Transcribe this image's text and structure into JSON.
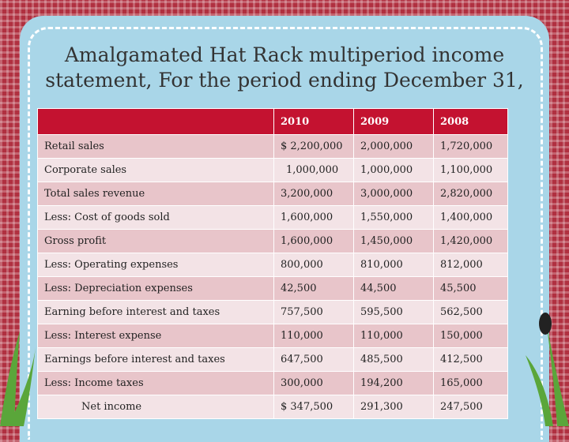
{
  "header": {
    "title": "Amalgamated Hat Rack multiperiod income statement, For the period ending December 31,"
  },
  "table": {
    "columns": [
      "2010",
      "2009",
      "2008"
    ],
    "rows": [
      [
        "Retail sales",
        "$ 2,200,000",
        "2,000,000",
        "1,720,000"
      ],
      [
        "Corporate sales",
        "1,000,000",
        "1,000,000",
        "1,100,000"
      ],
      [
        "Total sales revenue",
        "3,200,000",
        "3,000,000",
        "2,820,000"
      ],
      [
        "Less: Cost of goods sold",
        "1,600,000",
        "1,550,000",
        "1,400,000"
      ],
      [
        "Gross profit",
        "1,600,000",
        "1,450,000",
        "1,420,000"
      ],
      [
        "Less: Operating expenses",
        "800,000",
        "810,000",
        "812,000"
      ],
      [
        "Less: Depreciation expenses",
        "42,500",
        "44,500",
        "45,500"
      ],
      [
        "Earning before interest and taxes",
        "757,500",
        "595,500",
        "562,500"
      ],
      [
        "Less: Interest expense",
        "110,000",
        "110,000",
        "150,000"
      ],
      [
        "Earnings before interest and taxes",
        "647,500",
        "485,500",
        "412,500"
      ],
      [
        "Less: Income taxes",
        "300,000",
        "194,200",
        "165,000"
      ],
      [
        "Net income",
        "$ 347,500",
        "291,300",
        "247,500"
      ]
    ]
  }
}
